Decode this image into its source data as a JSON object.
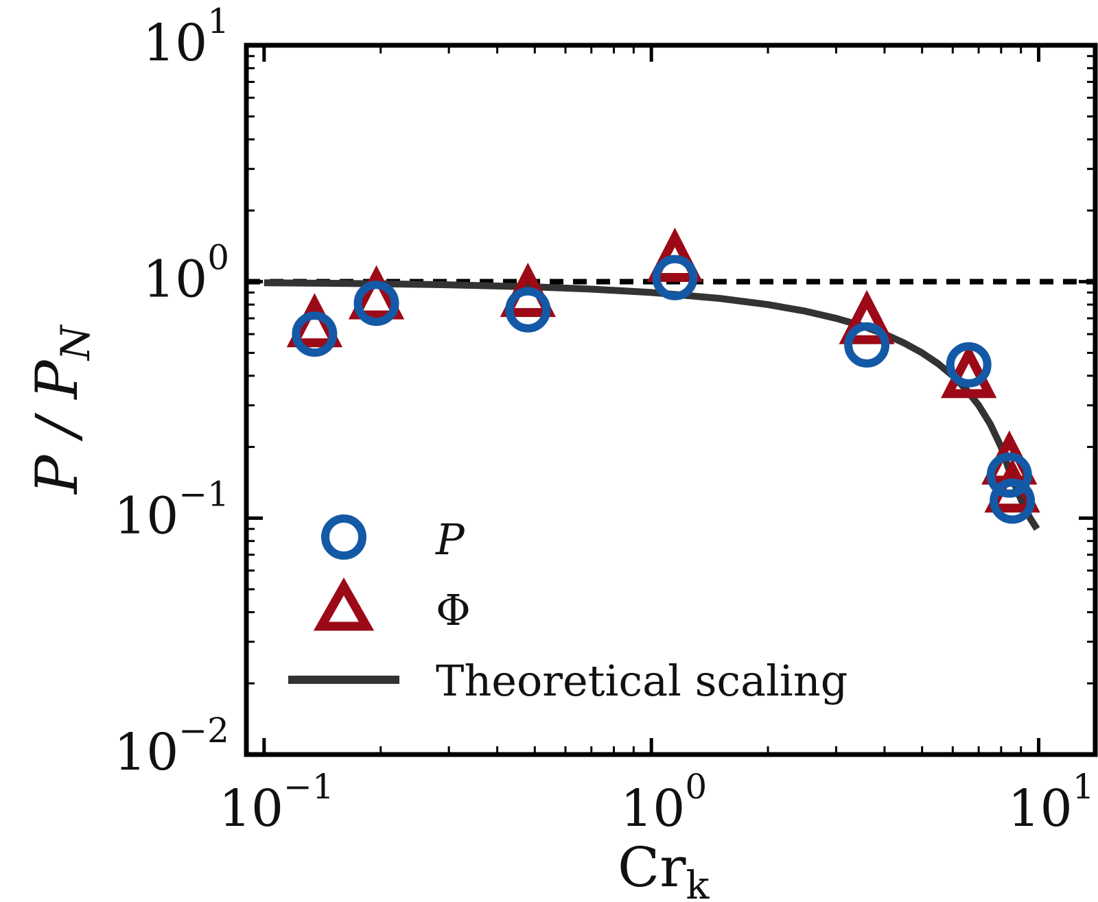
{
  "chart_data": {
    "type": "scatter",
    "xscale": "log",
    "yscale": "log",
    "xlim": [
      0.09,
      14
    ],
    "ylim": [
      0.01,
      10
    ],
    "xlabel": {
      "base": "Cr",
      "sub": "k"
    },
    "ylabel": {
      "main": "P / P",
      "sub": "N"
    },
    "x_ticks": [
      {
        "value": 0.1,
        "base": "10",
        "exp": "−1"
      },
      {
        "value": 1,
        "base": "10",
        "exp": "0"
      },
      {
        "value": 10,
        "base": "10",
        "exp": "1"
      }
    ],
    "y_ticks": [
      {
        "value": 0.01,
        "base": "10",
        "exp": "−2"
      },
      {
        "value": 0.1,
        "base": "10",
        "exp": "−1"
      },
      {
        "value": 1,
        "base": "10",
        "exp": "0"
      },
      {
        "value": 10,
        "base": "10",
        "exp": "1"
      }
    ],
    "reference_line": {
      "y": 1,
      "style": "dashed",
      "color": "#000000"
    },
    "series": [
      {
        "name": "P",
        "marker": "circle",
        "color": "#1459a6",
        "points": [
          {
            "x": 0.135,
            "y": 0.6
          },
          {
            "x": 0.195,
            "y": 0.81
          },
          {
            "x": 0.48,
            "y": 0.76
          },
          {
            "x": 1.15,
            "y": 1.04
          },
          {
            "x": 3.6,
            "y": 0.54
          },
          {
            "x": 6.6,
            "y": 0.445
          },
          {
            "x": 8.4,
            "y": 0.152
          },
          {
            "x": 8.55,
            "y": 0.118
          }
        ]
      },
      {
        "name": "Φ",
        "marker": "triangle",
        "color": "#9b0a16",
        "points": [
          {
            "x": 0.135,
            "y": 0.64
          },
          {
            "x": 0.195,
            "y": 0.84
          },
          {
            "x": 0.48,
            "y": 0.86
          },
          {
            "x": 1.15,
            "y": 1.21
          },
          {
            "x": 3.6,
            "y": 0.66
          },
          {
            "x": 6.6,
            "y": 0.39
          },
          {
            "x": 8.4,
            "y": 0.168
          },
          {
            "x": 8.55,
            "y": 0.128
          }
        ]
      },
      {
        "name": "Theoretical scaling",
        "marker": "line",
        "color": "#333333",
        "x": [
          0.1,
          0.2,
          0.3,
          0.5,
          0.7,
          1.0,
          1.5,
          2.0,
          2.5,
          3.0,
          3.5,
          4.0,
          4.5,
          5.0,
          5.5,
          6.0,
          6.5,
          7.0,
          7.5,
          8.0,
          8.5,
          9.0,
          9.5,
          9.9
        ],
        "values": [
          0.99,
          0.98,
          0.97,
          0.95,
          0.93,
          0.9,
          0.85,
          0.8,
          0.75,
          0.7,
          0.65,
          0.6,
          0.55,
          0.5,
          0.45,
          0.4,
          0.35,
          0.3,
          0.25,
          0.2,
          0.15,
          0.12,
          0.1,
          0.09
        ]
      }
    ],
    "legend": {
      "placement": "lower-left",
      "entries": [
        {
          "label": "P",
          "italic": true,
          "marker": "circle"
        },
        {
          "label": "Φ",
          "italic": false,
          "marker": "triangle"
        },
        {
          "label": "Theoretical scaling",
          "italic": false,
          "marker": "line"
        }
      ]
    }
  }
}
